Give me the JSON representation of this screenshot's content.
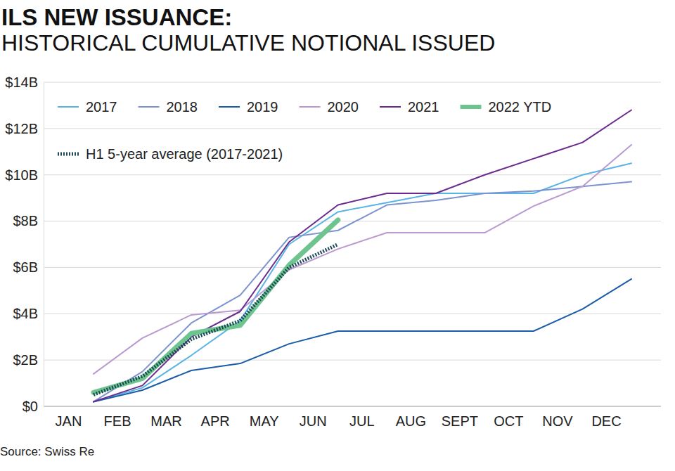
{
  "chart_data": {
    "type": "line",
    "title": "ILS NEW ISSUANCE:",
    "subtitle": "HISTORICAL CUMULATIVE NOTIONAL ISSUED",
    "source": "Source: Swiss Re",
    "categories": [
      "JAN",
      "FEB",
      "MAR",
      "APR",
      "MAY",
      "JUN",
      "JUL",
      "AUG",
      "SEPT",
      "OCT",
      "NOV",
      "DEC"
    ],
    "series": [
      {
        "name": "2017",
        "color": "#5ab4e6",
        "line_style": "solid",
        "values": [
          0.2,
          0.8,
          2.2,
          3.7,
          7.0,
          8.4,
          8.8,
          9.2,
          9.2,
          9.2,
          10.0,
          10.5
        ]
      },
      {
        "name": "2018",
        "color": "#7b93cf",
        "line_style": "solid",
        "values": [
          0.2,
          1.5,
          3.6,
          4.8,
          7.3,
          7.6,
          8.7,
          8.9,
          9.2,
          9.3,
          9.5,
          9.7
        ]
      },
      {
        "name": "2019",
        "color": "#1b5ca8",
        "line_style": "solid",
        "values": [
          0.2,
          0.7,
          1.55,
          1.85,
          2.7,
          3.25,
          3.25,
          3.25,
          3.25,
          3.25,
          4.2,
          5.5
        ]
      },
      {
        "name": "2020",
        "color": "#b99ad1",
        "line_style": "solid",
        "values": [
          1.4,
          2.95,
          3.95,
          4.15,
          5.9,
          6.8,
          7.5,
          7.5,
          7.5,
          8.65,
          9.5,
          11.3
        ]
      },
      {
        "name": "2021",
        "color": "#6a2a8e",
        "line_style": "solid",
        "values": [
          0.2,
          0.9,
          3.0,
          4.1,
          7.1,
          8.7,
          9.2,
          9.2,
          10.0,
          10.7,
          11.4,
          12.8
        ]
      },
      {
        "name": "2022 YTD",
        "color": "#6dc48e",
        "line_style": "solid",
        "values": [
          0.6,
          1.2,
          3.15,
          3.5,
          6.1,
          8.05,
          null,
          null,
          null,
          null,
          null,
          null
        ]
      },
      {
        "name": "H1 5-year average (2017-2021)",
        "color": "#1c4a57",
        "line_style": "dotted",
        "values": [
          0.5,
          1.3,
          2.9,
          3.7,
          6.0,
          7.0,
          null,
          null,
          null,
          null,
          null,
          null
        ]
      }
    ],
    "ylim": [
      0,
      14
    ],
    "yticks": [
      {
        "value": 0,
        "label": "$0"
      },
      {
        "value": 2,
        "label": "$2B"
      },
      {
        "value": 4,
        "label": "$4B"
      },
      {
        "value": 6,
        "label": "$6B"
      },
      {
        "value": 8,
        "label": "$8B"
      },
      {
        "value": 10,
        "label": "$10B"
      },
      {
        "value": 12,
        "label": "$12B"
      },
      {
        "value": 14,
        "label": "$14B"
      }
    ],
    "grid": true,
    "legend": "top"
  }
}
